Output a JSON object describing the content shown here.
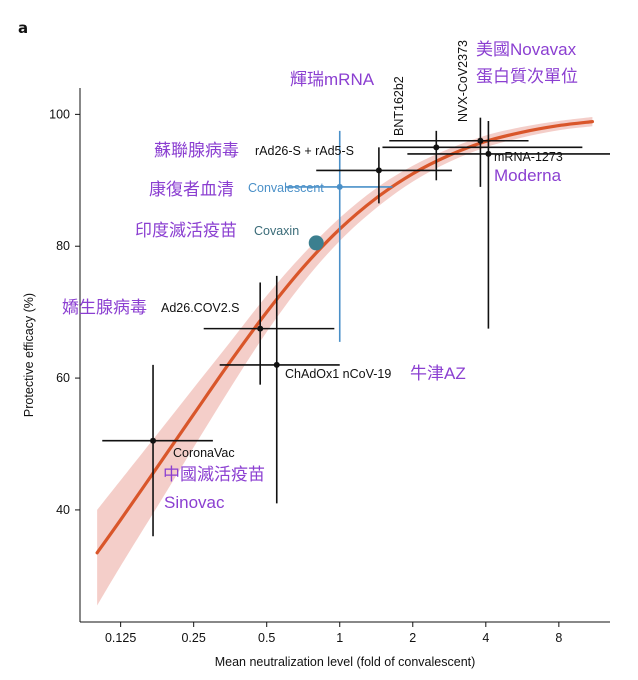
{
  "panel_label": "a",
  "chart_data": {
    "type": "scatter",
    "xlabel": "Mean neutralization level (fold of convalescent)",
    "ylabel": "Protective efficacy (%)",
    "x_scale": "log2",
    "xlim": [
      0.085,
      13
    ],
    "ylim": [
      23,
      104
    ],
    "xticks": [
      {
        "value": 0.125,
        "label": "0.125"
      },
      {
        "value": 0.25,
        "label": "0.25"
      },
      {
        "value": 0.5,
        "label": "0.5"
      },
      {
        "value": 1,
        "label": "1"
      },
      {
        "value": 2,
        "label": "2"
      },
      {
        "value": 4,
        "label": "4"
      },
      {
        "value": 8,
        "label": "8"
      }
    ],
    "yticks": [
      {
        "value": 40,
        "label": "40"
      },
      {
        "value": 60,
        "label": "60"
      },
      {
        "value": 80,
        "label": "80"
      },
      {
        "value": 100,
        "label": "100"
      }
    ],
    "points": [
      {
        "name": "CoronaVac",
        "x": 0.17,
        "y": 50.5,
        "x_err": [
          0.105,
          0.3
        ],
        "y_err": [
          36,
          62
        ],
        "annotation": "中國滅活疫苗"
      },
      {
        "name": "Ad26.COV2.S",
        "x": 0.47,
        "y": 67.5,
        "x_err": [
          0.275,
          0.95
        ],
        "y_err": [
          59,
          74.5
        ],
        "annotation": "嬌生腺病毒"
      },
      {
        "name": "ChAdOx1 nCoV-19",
        "x": 0.55,
        "y": 62,
        "x_err": [
          0.32,
          1.0
        ],
        "y_err": [
          41,
          75.5
        ],
        "annotation": "牛津AZ"
      },
      {
        "name": "Covaxin",
        "x": 0.8,
        "y": 80.5,
        "annotation": "印度滅活疫苗"
      },
      {
        "name": "Convalescent",
        "x": 1.0,
        "y": 89,
        "x_err": [
          0.6,
          1.65
        ],
        "y_err": [
          65.5,
          97.5
        ],
        "annotation": "康復者血清"
      },
      {
        "name": "rAd26-S + rAd5-S",
        "x": 1.45,
        "y": 91.5,
        "x_err": [
          0.8,
          2.9
        ],
        "y_err": [
          86.5,
          95
        ],
        "annotation": "蘇聯腺病毒"
      },
      {
        "name": "BNT162b2",
        "x": 2.5,
        "y": 95,
        "x_err": [
          1.5,
          10.0
        ],
        "y_err": [
          90,
          97.5
        ],
        "annotation": "輝瑞mRNA"
      },
      {
        "name": "NVX-CoV2373",
        "x": 3.8,
        "y": 96,
        "x_err": [
          1.6,
          6.0
        ],
        "y_err": [
          89,
          99.5
        ],
        "annotation": "美國Novavax"
      },
      {
        "name": "mRNA-1273",
        "x": 4.1,
        "y": 94,
        "x_err": [
          1.9,
          13.0
        ],
        "y_err": [
          67.5,
          99
        ]
      }
    ],
    "curve": [
      {
        "x": 0.1,
        "y": 33.5
      },
      {
        "x": 0.125,
        "y": 38.5
      },
      {
        "x": 0.177,
        "y": 46.5
      },
      {
        "x": 0.25,
        "y": 54.5
      },
      {
        "x": 0.354,
        "y": 62.5
      },
      {
        "x": 0.5,
        "y": 70
      },
      {
        "x": 0.707,
        "y": 76.8
      },
      {
        "x": 1,
        "y": 82.6
      },
      {
        "x": 1.414,
        "y": 87.3
      },
      {
        "x": 2,
        "y": 91
      },
      {
        "x": 2.83,
        "y": 93.8
      },
      {
        "x": 4,
        "y": 95.9
      },
      {
        "x": 5.66,
        "y": 97.3
      },
      {
        "x": 8,
        "y": 98.3
      },
      {
        "x": 11,
        "y": 98.9
      }
    ],
    "band_upper": [
      {
        "x": 0.1,
        "y": 40
      },
      {
        "x": 0.125,
        "y": 44.5
      },
      {
        "x": 0.177,
        "y": 51.5
      },
      {
        "x": 0.25,
        "y": 58.5
      },
      {
        "x": 0.354,
        "y": 65.5
      },
      {
        "x": 0.5,
        "y": 72.5
      },
      {
        "x": 0.707,
        "y": 78.8
      },
      {
        "x": 1,
        "y": 84.3
      },
      {
        "x": 1.414,
        "y": 88.8
      },
      {
        "x": 2,
        "y": 92.2
      },
      {
        "x": 2.83,
        "y": 94.8
      },
      {
        "x": 4,
        "y": 96.8
      },
      {
        "x": 5.66,
        "y": 98.1
      },
      {
        "x": 8,
        "y": 99
      },
      {
        "x": 11,
        "y": 99.6
      }
    ],
    "band_lower": [
      {
        "x": 0.1,
        "y": 25.5
      },
      {
        "x": 0.125,
        "y": 31.5
      },
      {
        "x": 0.177,
        "y": 40.5
      },
      {
        "x": 0.25,
        "y": 49.5
      },
      {
        "x": 0.354,
        "y": 58.5
      },
      {
        "x": 0.5,
        "y": 67
      },
      {
        "x": 0.707,
        "y": 74.5
      },
      {
        "x": 1,
        "y": 80.8
      },
      {
        "x": 1.414,
        "y": 85.8
      },
      {
        "x": 2,
        "y": 89.8
      },
      {
        "x": 2.83,
        "y": 92.8
      },
      {
        "x": 4,
        "y": 95
      },
      {
        "x": 5.66,
        "y": 96.5
      },
      {
        "x": 8,
        "y": 97.6
      },
      {
        "x": 11,
        "y": 98.2
      }
    ],
    "colors": {
      "curve": "#d9562a",
      "band": "#f2c6c0",
      "points": "#111111",
      "convalescent": "#4a90c8",
      "covaxin": "#3b7f8f",
      "annotation": "#8b3fd1"
    }
  },
  "labels": {
    "coronavac": "CoronaVac",
    "coronavac_zh": "中國滅活疫苗",
    "sinovac": "Sinovac",
    "ad26": "Ad26.COV2.S",
    "ad26_zh": "嬌生腺病毒",
    "chadox": "ChAdOx1 nCoV-19",
    "chadox_zh": "牛津AZ",
    "covaxin": "Covaxin",
    "covaxin_zh": "印度滅活疫苗",
    "convalescent": "Convalescent",
    "convalescent_zh": "康復者血清",
    "rad26": "rAd26-S + rAd5-S",
    "rad26_zh": "蘇聯腺病毒",
    "bnt": "BNT162b2",
    "bnt_zh": "輝瑞mRNA",
    "nvx": "NVX-CoV2373",
    "nvx_zh1": "美國Novavax",
    "nvx_zh2": "蛋白質次單位",
    "mrna1273": "mRNA-1273",
    "moderna": "Moderna"
  }
}
